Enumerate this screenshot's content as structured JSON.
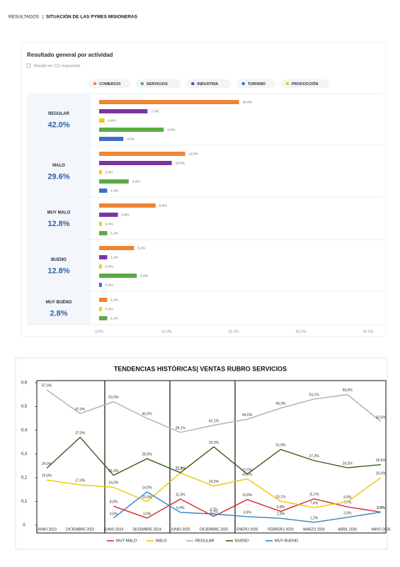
{
  "header": {
    "breadcrumb": "RESULTADOS",
    "title": "SITUACIÓN DE LAS PYMES MISIONERAS"
  },
  "chart_data": [
    {
      "type": "grouped-hbar",
      "title": "Resultado general por actividad",
      "subtitle": "Basado en 212 respuestas",
      "categories": [
        "REGULAR",
        "MALO",
        "MUY MALO",
        "BUENO",
        "MUY BUENO"
      ],
      "group_values": [
        42.0,
        29.6,
        12.8,
        12.8,
        2.8
      ],
      "group_value_labels": [
        "42.0%",
        "29.6%",
        "12.8%",
        "12.8%",
        "2.8%"
      ],
      "series": [
        {
          "name": "COMERCIO",
          "color": "#ee8434",
          "values": [
            20.8,
            12.8,
            8.4,
            5.2,
            1.2
          ],
          "value_labels": [
            "20.8%",
            "12.8%",
            "8.4%",
            "5.2%",
            "1.2%"
          ]
        },
        {
          "name": "SERVICIOS",
          "color": "#5aaa46",
          "values": [
            9.6,
            4.4,
            1.2,
            5.6,
            1.2
          ],
          "value_labels": [
            "9.6%",
            "4.4%",
            "1.2%",
            "5.6%",
            "1.2%"
          ]
        },
        {
          "name": "INDUSTRIA",
          "color": "#7a35a0",
          "values": [
            7.2,
            10.8,
            2.8,
            1.2,
            null
          ],
          "value_labels": [
            "7.2%",
            "10.8%",
            "2.8%",
            "1.2%",
            null
          ]
        },
        {
          "name": "TURISMO",
          "color": "#3a6fc4",
          "values": [
            3.6,
            1.2,
            null,
            0.4,
            null
          ],
          "value_labels": [
            "3.6%",
            "1.2%",
            null,
            "0.4%",
            null
          ]
        },
        {
          "name": "PRODUCCIÓN",
          "color": "#f5c518",
          "values": [
            0.8,
            0.4,
            0.4,
            0.4,
            0.4
          ],
          "value_labels": [
            "0.8%",
            "0.4%",
            "0.4%",
            "0.4%",
            "0.4%"
          ]
        }
      ],
      "xlim": [
        0,
        40
      ],
      "xticks": [
        {
          "value": 0,
          "label": "0.0%"
        },
        {
          "value": 10,
          "label": "10.0%"
        },
        {
          "value": 20,
          "label": "20.0%"
        },
        {
          "value": 30,
          "label": "30.0%"
        },
        {
          "value": 40,
          "label": "40.0%"
        }
      ]
    },
    {
      "type": "line",
      "title": "TENDENCIAS HISTÓRICAS| VENTAS RUBRO SERVICIOS",
      "categories": [
        "JUNIO 2023",
        "DICIEMBRE 2023",
        "JUNIO 2024",
        "DICIEMBRE 2024",
        "JUNIO 2025",
        "DICIEMBRE 2025",
        "ENERO 2026",
        "FEBRERO 2026",
        "MARZO 2026",
        "ABRIL 2026",
        "MAYO 2026"
      ],
      "series": [
        {
          "name": "MUY MALO",
          "color": "#d9262e",
          "values": [
            null,
            null,
            0.08,
            0.03,
            0.11,
            0.037,
            0.108,
            0.058,
            0.111,
            0.077,
            0.055
          ],
          "value_labels": [
            null,
            null,
            "8,0%",
            "3,0%",
            "11,0%",
            "3,7%",
            "10,8%",
            "5,8%",
            "11,1%",
            "7,7%",
            "5,5%"
          ]
        },
        {
          "name": "MALO",
          "color": "#f2c500",
          "values": [
            0.19,
            0.17,
            0.16,
            0.1,
            0.22,
            0.165,
            0.195,
            0.101,
            0.074,
            0.099,
            0.2
          ],
          "value_labels": [
            "19,0%",
            "17,0%",
            "16,0%",
            "10,0%",
            "22,0%",
            "16,5%",
            "19,5%",
            "10,1%",
            "7,4%",
            "9,9%",
            "20,0%"
          ]
        },
        {
          "name": "REGULAR",
          "color": "#aeaeae",
          "values": [
            0.57,
            0.47,
            0.52,
            0.45,
            0.391,
            0.421,
            0.446,
            0.493,
            0.531,
            0.55,
            0.436
          ],
          "value_labels": [
            "57,0%",
            "47,0%",
            "52,0%",
            "45,0%",
            "39,1%",
            "42,1%",
            "44,6%",
            "49,3%",
            "53,1%",
            "55,0%",
            "43,6%"
          ]
        },
        {
          "name": "BUENO",
          "color": "#3d5c1a",
          "values": [
            0.24,
            0.37,
            0.21,
            0.28,
            0.221,
            0.33,
            0.215,
            0.319,
            0.272,
            0.242,
            0.255
          ],
          "value_labels": [
            "24,0%",
            "37,0%",
            "21,0%",
            "28,0%",
            "22,1%",
            "33,0%",
            "21,5%",
            "31,9%",
            "27,2%",
            "24,2%",
            "25,5%"
          ]
        },
        {
          "name": "MUY BUENO",
          "color": "#2e86c1",
          "values": [
            null,
            null,
            0.03,
            0.14,
            0.054,
            0.047,
            0.036,
            0.029,
            0.012,
            0.033,
            0.055
          ],
          "value_labels": [
            null,
            null,
            "3,0%",
            "14,0%",
            "5,4%",
            "4,7%",
            "3,6%",
            "2,9%",
            "1,2%",
            "3,3%",
            "5,5%"
          ]
        }
      ],
      "ylim": [
        0,
        0.6
      ],
      "yticks": [
        0,
        {
          "value": 0.1,
          "label": "0,1"
        },
        {
          "value": 0.2,
          "label": "0,2"
        },
        {
          "value": 0.3,
          "label": "0,3"
        },
        {
          "value": 0.4,
          "label": "0,4"
        },
        {
          "value": 0.5,
          "label": "0,5"
        },
        {
          "value": 0.6,
          "label": "0,6"
        }
      ]
    }
  ]
}
